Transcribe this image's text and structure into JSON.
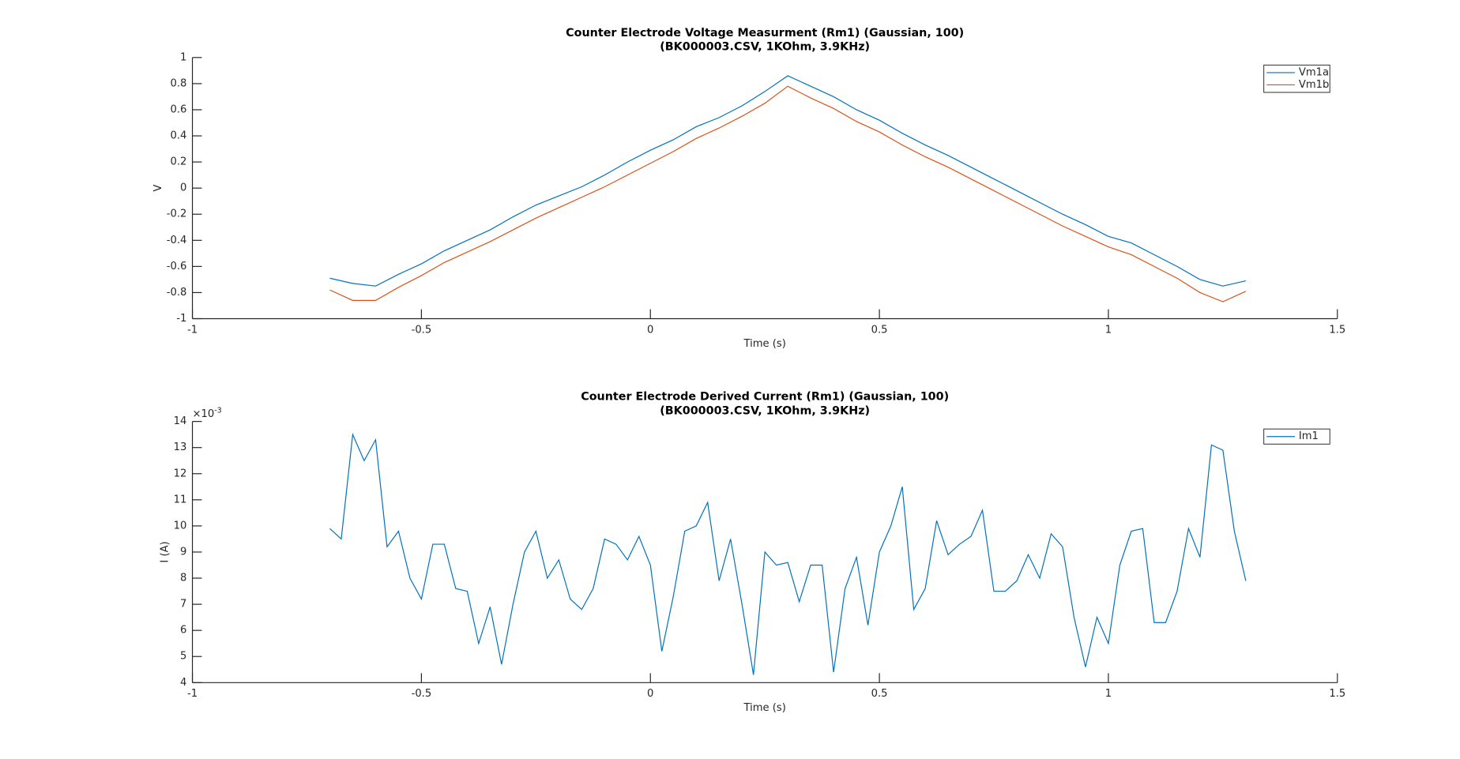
{
  "chart_data": [
    {
      "type": "line",
      "title": [
        "Counter Electrode Voltage Measurment (Rm1) (Gaussian, 100)",
        "(BK000003.CSV, 1KOhm, 3.9KHz)"
      ],
      "xlabel": "Time (s)",
      "ylabel": "V",
      "x": [
        -0.7,
        -0.65,
        -0.6,
        -0.55,
        -0.5,
        -0.45,
        -0.4,
        -0.35,
        -0.3,
        -0.25,
        -0.2,
        -0.15,
        -0.1,
        -0.05,
        0,
        0.05,
        0.1,
        0.15,
        0.2,
        0.25,
        0.3,
        0.35,
        0.4,
        0.45,
        0.5,
        0.55,
        0.6,
        0.65,
        0.7,
        0.75,
        0.8,
        0.85,
        0.9,
        0.95,
        1.0,
        1.05,
        1.1,
        1.15,
        1.2,
        1.25,
        1.3
      ],
      "series": [
        {
          "name": "Vm1a",
          "color": "#0072BD",
          "values": [
            -0.69,
            -0.73,
            -0.75,
            -0.66,
            -0.58,
            -0.48,
            -0.4,
            -0.32,
            -0.22,
            -0.13,
            -0.06,
            0.01,
            0.1,
            0.2,
            0.29,
            0.37,
            0.47,
            0.54,
            0.63,
            0.74,
            0.86,
            0.78,
            0.7,
            0.6,
            0.52,
            0.42,
            0.33,
            0.25,
            0.16,
            0.07,
            -0.02,
            -0.11,
            -0.2,
            -0.28,
            -0.37,
            -0.42,
            -0.51,
            -0.6,
            -0.7,
            -0.75,
            -0.71
          ]
        },
        {
          "name": "Vm1b",
          "color": "#D95319",
          "values": [
            -0.78,
            -0.86,
            -0.86,
            -0.76,
            -0.67,
            -0.57,
            -0.49,
            -0.41,
            -0.32,
            -0.23,
            -0.15,
            -0.07,
            0.01,
            0.1,
            0.19,
            0.28,
            0.38,
            0.46,
            0.55,
            0.65,
            0.78,
            0.69,
            0.61,
            0.51,
            0.43,
            0.33,
            0.24,
            0.16,
            0.07,
            -0.02,
            -0.11,
            -0.2,
            -0.29,
            -0.37,
            -0.45,
            -0.51,
            -0.6,
            -0.69,
            -0.8,
            -0.87,
            -0.79
          ]
        }
      ],
      "xlim": [
        -1,
        1.5
      ],
      "xticks": [
        -1,
        -0.5,
        0,
        0.5,
        1,
        1.5
      ],
      "ylim": [
        -1,
        1
      ],
      "yticks": [
        -1,
        -0.8,
        -0.6,
        -0.4,
        -0.2,
        0,
        0.2,
        0.4,
        0.6,
        0.8,
        1
      ],
      "legend": "northeast"
    },
    {
      "type": "line",
      "title": [
        "Counter Electrode Derived Current (Rm1) (Gaussian, 100)",
        "(BK000003.CSV, 1KOhm, 3.9KHz)"
      ],
      "xlabel": "Time (s)",
      "ylabel": "I (A)",
      "y_multiplier": [
        "×10",
        "-3"
      ],
      "x": [
        -0.7,
        -0.675,
        -0.65,
        -0.625,
        -0.6,
        -0.575,
        -0.55,
        -0.525,
        -0.5,
        -0.475,
        -0.45,
        -0.425,
        -0.4,
        -0.375,
        -0.35,
        -0.325,
        -0.3,
        -0.275,
        -0.25,
        -0.225,
        -0.2,
        -0.175,
        -0.15,
        -0.125,
        -0.1,
        -0.075,
        -0.05,
        -0.025,
        0,
        0.025,
        0.05,
        0.075,
        0.1,
        0.125,
        0.15,
        0.175,
        0.2,
        0.225,
        0.25,
        0.275,
        0.3,
        0.325,
        0.35,
        0.375,
        0.4,
        0.425,
        0.45,
        0.475,
        0.5,
        0.525,
        0.55,
        0.575,
        0.6,
        0.625,
        0.65,
        0.675,
        0.7,
        0.725,
        0.75,
        0.775,
        0.8,
        0.825,
        0.85,
        0.875,
        0.9,
        0.925,
        0.95,
        0.975,
        1.0,
        1.025,
        1.05,
        1.075,
        1.1,
        1.125,
        1.15,
        1.175,
        1.2,
        1.225,
        1.25,
        1.275,
        1.3
      ],
      "series": [
        {
          "name": "Im1",
          "color": "#0072BD",
          "values": [
            0.0099,
            0.0095,
            0.0135,
            0.0125,
            0.0133,
            0.0092,
            0.0098,
            0.008,
            0.0072,
            0.0093,
            0.0093,
            0.0076,
            0.0075,
            0.0055,
            0.0069,
            0.0047,
            0.007,
            0.009,
            0.0098,
            0.008,
            0.0087,
            0.0072,
            0.0068,
            0.0076,
            0.0095,
            0.0093,
            0.0087,
            0.0096,
            0.0085,
            0.0052,
            0.0073,
            0.0098,
            0.01,
            0.0109,
            0.0079,
            0.0095,
            0.007,
            0.0043,
            0.009,
            0.0085,
            0.0086,
            0.0071,
            0.0085,
            0.0085,
            0.0044,
            0.0076,
            0.0088,
            0.0062,
            0.009,
            0.01,
            0.0115,
            0.0068,
            0.0076,
            0.0102,
            0.0089,
            0.0093,
            0.0096,
            0.0106,
            0.0075,
            0.0075,
            0.0079,
            0.0089,
            0.008,
            0.0097,
            0.0092,
            0.0065,
            0.0046,
            0.0065,
            0.0055,
            0.0085,
            0.0098,
            0.0099,
            0.0063,
            0.0063,
            0.0075,
            0.0099,
            0.0088,
            0.0131,
            0.0129,
            0.0098,
            0.0079
          ]
        }
      ],
      "xlim": [
        -1,
        1.5
      ],
      "xticks": [
        -1,
        -0.5,
        0,
        0.5,
        1,
        1.5
      ],
      "ylim": [
        0.004,
        0.014
      ],
      "yticks": [
        {
          "value": 0.004,
          "label": "4"
        },
        {
          "value": 0.005,
          "label": "5"
        },
        {
          "value": 0.006,
          "label": "6"
        },
        {
          "value": 0.007,
          "label": "7"
        },
        {
          "value": 0.008,
          "label": "8"
        },
        {
          "value": 0.009,
          "label": "9"
        },
        {
          "value": 0.01,
          "label": "10"
        },
        {
          "value": 0.011,
          "label": "11"
        },
        {
          "value": 0.012,
          "label": "12"
        },
        {
          "value": 0.013,
          "label": "13"
        },
        {
          "value": 0.014,
          "label": "14"
        }
      ],
      "legend": "northeast"
    }
  ]
}
